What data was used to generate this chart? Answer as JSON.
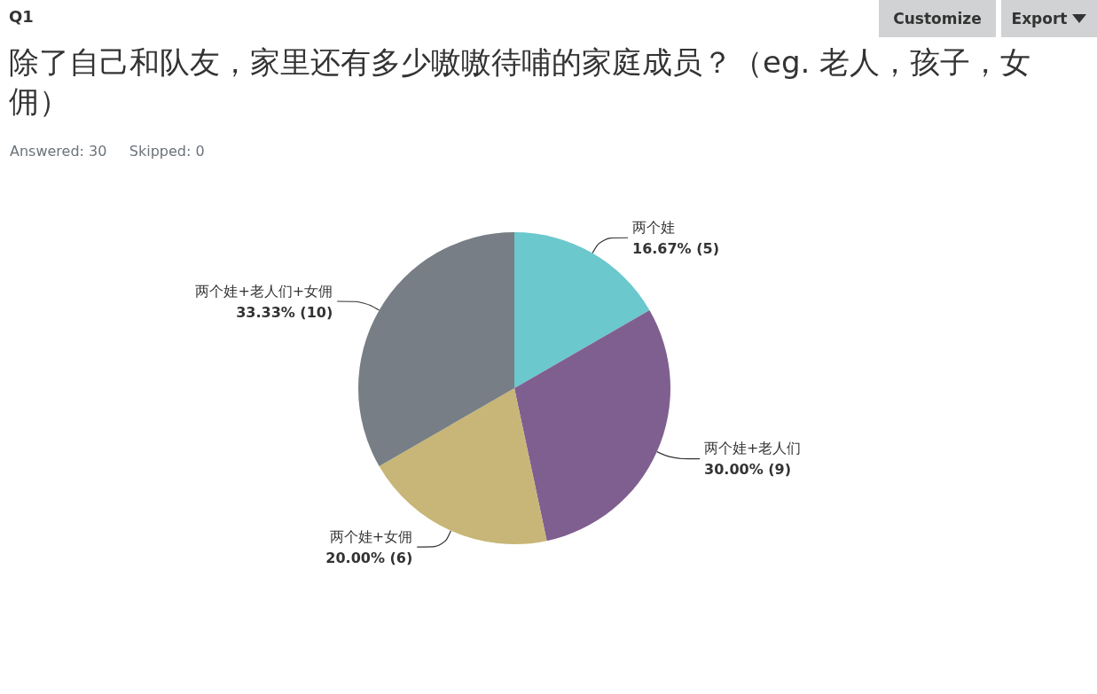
{
  "chart_data": {
    "type": "pie",
    "title": "除了自己和队友，家里还有多少嗷嗷待哺的家庭成员？（eg. 老人，孩子，女佣）",
    "subtitle": "Answered: 30     Skipped: 0",
    "annotations": [
      "Q1",
      "Customize",
      "Export"
    ],
    "categories": [
      "两个娃",
      "两个娃+老人们",
      "两个娃+女佣",
      "两个娃+老人们+女佣"
    ],
    "values": [
      5,
      9,
      6,
      10
    ],
    "value_labels": [
      "16.67% (5)",
      "30.00% (9)",
      "20.00% (6)",
      "33.33% (10)"
    ],
    "colors": [
      "#6bc8cd",
      "#7f5f90",
      "#c7b677",
      "#787e85"
    ],
    "legend": false
  }
}
